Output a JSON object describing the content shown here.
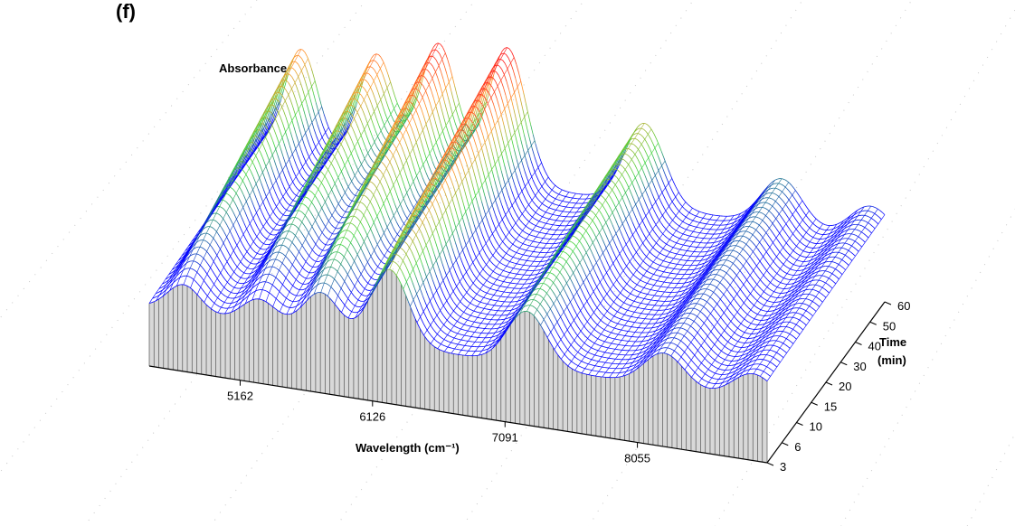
{
  "chart_data": {
    "type": "surface",
    "panel_label": "(f)",
    "zlabel": "Absorbance",
    "xlabel": "Wavelength (cm⁻¹)",
    "ylabel_line1": "Time",
    "ylabel_line2": "(min)",
    "x_ticks": [
      5162,
      6126,
      7091,
      8055
    ],
    "x_tick_labels": [
      "5162",
      "6126",
      "7091",
      "8055"
    ],
    "xlim": [
      4500,
      9000
    ],
    "y_ticks": [
      3,
      6,
      10,
      15,
      20,
      30,
      40,
      50,
      60
    ],
    "y_tick_labels": [
      "3",
      "6",
      "10",
      "15",
      "20",
      "30",
      "40",
      "50",
      "60"
    ],
    "colormap": [
      "#0000ff",
      "#3cd53c",
      "#ff9a2a",
      "#ff1a1a"
    ],
    "base_wall_color": "#555555",
    "peaks": [
      {
        "center_cm": 4750,
        "amp_start": 0.2,
        "amp_end": 0.75
      },
      {
        "center_cm": 5300,
        "amp_start": 0.18,
        "amp_end": 0.8
      },
      {
        "center_cm": 5750,
        "amp_start": 0.3,
        "amp_end": 0.95
      },
      {
        "center_cm": 6250,
        "amp_start": 0.55,
        "amp_end": 1.0
      },
      {
        "center_cm": 7250,
        "amp_start": 0.4,
        "amp_end": 0.6
      },
      {
        "center_cm": 8250,
        "amp_start": 0.25,
        "amp_end": 0.35
      },
      {
        "center_cm": 8900,
        "amp_start": 0.2,
        "amp_end": 0.25
      }
    ]
  }
}
